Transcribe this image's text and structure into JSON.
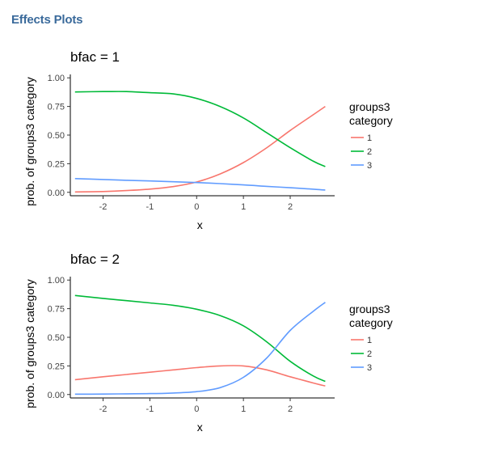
{
  "page": {
    "title": "Effects Plots"
  },
  "colors": {
    "cat1": "#F8766D",
    "cat2": "#00BA38",
    "cat3": "#619CFF",
    "title": "#3a6a9b"
  },
  "chart_data": [
    {
      "type": "line",
      "title": "bfac = 1",
      "xlabel": "x",
      "ylabel": "prob. of groups3 category",
      "xlim": [
        -2.7,
        2.95
      ],
      "ylim": [
        -0.03,
        1.03
      ],
      "x_ticks": [
        -2,
        -1,
        0,
        1,
        2
      ],
      "x_tick_labels": [
        "-2",
        "-1",
        "0",
        "1",
        "2"
      ],
      "y_ticks": [
        0,
        0.25,
        0.5,
        0.75,
        1
      ],
      "y_tick_labels": [
        "0.00",
        "0.25",
        "0.50",
        "0.75",
        "1.00"
      ],
      "legend": {
        "title_line1": "groups3",
        "title_line2": "category",
        "position": "right"
      },
      "x": [
        -2.6,
        -2.0,
        -1.5,
        -1.0,
        -0.5,
        0.0,
        0.5,
        1.0,
        1.5,
        2.0,
        2.5,
        2.75
      ],
      "series": [
        {
          "name": "1",
          "values": [
            0.003,
            0.007,
            0.015,
            0.028,
            0.05,
            0.09,
            0.16,
            0.26,
            0.39,
            0.54,
            0.68,
            0.75
          ]
        },
        {
          "name": "2",
          "values": [
            0.877,
            0.88,
            0.88,
            0.87,
            0.86,
            0.82,
            0.75,
            0.65,
            0.52,
            0.39,
            0.27,
            0.225
          ]
        },
        {
          "name": "3",
          "values": [
            0.12,
            0.112,
            0.105,
            0.099,
            0.092,
            0.085,
            0.076,
            0.065,
            0.052,
            0.04,
            0.027,
            0.02
          ]
        }
      ]
    },
    {
      "type": "line",
      "title": "bfac = 2",
      "xlabel": "x",
      "ylabel": "prob. of groups3 category",
      "xlim": [
        -2.7,
        2.95
      ],
      "ylim": [
        -0.03,
        1.03
      ],
      "x_ticks": [
        -2,
        -1,
        0,
        1,
        2
      ],
      "x_tick_labels": [
        "-2",
        "-1",
        "0",
        "1",
        "2"
      ],
      "y_ticks": [
        0,
        0.25,
        0.5,
        0.75,
        1
      ],
      "y_tick_labels": [
        "0.00",
        "0.25",
        "0.50",
        "0.75",
        "1.00"
      ],
      "legend": {
        "title_line1": "groups3",
        "title_line2": "category",
        "position": "right"
      },
      "x": [
        -2.6,
        -2.0,
        -1.5,
        -1.0,
        -0.5,
        0.0,
        0.5,
        1.0,
        1.5,
        2.0,
        2.5,
        2.75
      ],
      "series": [
        {
          "name": "1",
          "values": [
            0.13,
            0.155,
            0.175,
            0.195,
            0.215,
            0.235,
            0.25,
            0.25,
            0.215,
            0.155,
            0.1,
            0.075
          ]
        },
        {
          "name": "2",
          "values": [
            0.865,
            0.84,
            0.82,
            0.8,
            0.78,
            0.745,
            0.69,
            0.6,
            0.46,
            0.29,
            0.16,
            0.115
          ]
        },
        {
          "name": "3",
          "values": [
            0.003,
            0.004,
            0.006,
            0.008,
            0.013,
            0.025,
            0.06,
            0.15,
            0.32,
            0.56,
            0.73,
            0.805
          ]
        }
      ]
    }
  ]
}
